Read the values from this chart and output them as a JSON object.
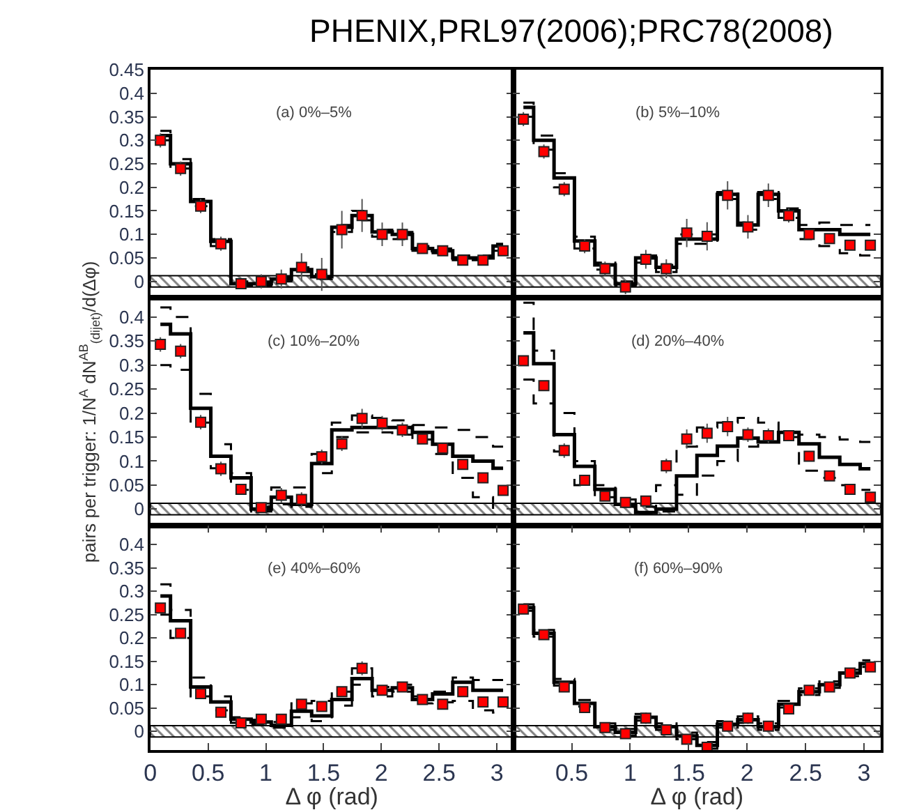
{
  "chart_data": [
    {
      "type": "step",
      "title": "PHENIX,PRL97(2006);PRC78(2008)",
      "annotations": [
        "(a) 0%–5%"
      ],
      "x": [
        0.087,
        0.262,
        0.436,
        0.611,
        0.785,
        0.96,
        1.134,
        1.309,
        1.484,
        1.658,
        1.833,
        2.007,
        2.182,
        2.356,
        2.531,
        2.705,
        2.88,
        3.054
      ],
      "xlim": [
        0,
        3.1416
      ],
      "ylim": [
        -0.035,
        0.45
      ],
      "yticks": [
        0,
        0.05,
        0.1,
        0.15,
        0.2,
        0.25,
        0.3,
        0.35,
        0.4,
        0.45
      ],
      "tick_labels": "y",
      "bands": [
        {
          "axis": "y",
          "from": -0.012,
          "to": 0.012,
          "color": "#000000"
        }
      ],
      "series": [
        {
          "color": "#000000",
          "line_style": "dashed",
          "values": [
            0.3,
            0.24,
            0.16,
            0.075,
            -0.01,
            -0.01,
            0.0,
            0.02,
            0.005,
            0.105,
            0.13,
            0.095,
            0.09,
            0.065,
            0.06,
            0.045,
            0.045,
            0.065
          ]
        },
        {
          "color": "#000000",
          "line_style": "dashed",
          "values": [
            0.32,
            0.26,
            0.175,
            0.09,
            0.0,
            0.0,
            0.01,
            0.03,
            0.015,
            0.12,
            0.15,
            0.11,
            0.105,
            0.075,
            0.07,
            0.055,
            0.055,
            0.08
          ]
        },
        {
          "color": "#000000",
          "values": [
            0.31,
            0.25,
            0.17,
            0.085,
            -0.005,
            -0.005,
            0.005,
            0.025,
            0.01,
            0.115,
            0.14,
            0.105,
            0.1,
            0.07,
            0.065,
            0.05,
            0.05,
            0.075
          ]
        },
        {
          "type": "scatter",
          "color": "#ff0000",
          "marker": "square",
          "values": [
            0.3,
            0.24,
            0.16,
            0.08,
            -0.005,
            0.0,
            0.005,
            0.03,
            0.015,
            0.11,
            0.14,
            0.1,
            0.1,
            0.07,
            0.065,
            0.045,
            0.045,
            0.065
          ],
          "errors": [
            0.015,
            0.015,
            0.015,
            0.015,
            0.01,
            0.015,
            0.02,
            0.03,
            0.035,
            0.04,
            0.035,
            0.025,
            0.025,
            0.01,
            0.01,
            0.01,
            0.01,
            0.01
          ]
        }
      ]
    },
    {
      "type": "step",
      "annotations": [
        "(b) 5%–10%"
      ],
      "x": [
        0.087,
        0.262,
        0.436,
        0.611,
        0.785,
        0.96,
        1.134,
        1.309,
        1.484,
        1.658,
        1.833,
        2.007,
        2.182,
        2.356,
        2.531,
        2.705,
        2.88,
        3.054
      ],
      "xlim": [
        0,
        3.1416
      ],
      "ylim": [
        -0.035,
        0.45
      ],
      "yticks": [
        0,
        0.05,
        0.1,
        0.15,
        0.2,
        0.25,
        0.3,
        0.35,
        0.4,
        0.45
      ],
      "tick_labels": false,
      "bands": [
        {
          "axis": "y",
          "from": -0.012,
          "to": 0.012,
          "color": "#000000"
        }
      ],
      "series": [
        {
          "color": "#000000",
          "line_style": "dashed",
          "values": [
            0.35,
            0.28,
            0.2,
            0.07,
            0.025,
            -0.01,
            0.04,
            0.02,
            0.08,
            0.08,
            0.175,
            0.11,
            0.175,
            0.135,
            0.09,
            0.075,
            0.06,
            0.055
          ]
        },
        {
          "color": "#000000",
          "line_style": "dashed",
          "values": [
            0.38,
            0.31,
            0.23,
            0.095,
            0.04,
            0.0,
            0.055,
            0.035,
            0.1,
            0.1,
            0.19,
            0.125,
            0.19,
            0.155,
            0.12,
            0.125,
            0.12,
            0.12
          ]
        },
        {
          "color": "#000000",
          "values": [
            0.37,
            0.3,
            0.22,
            0.086,
            0.035,
            -0.005,
            0.05,
            0.03,
            0.09,
            0.09,
            0.185,
            0.12,
            0.185,
            0.15,
            0.11,
            0.11,
            0.1,
            0.1
          ]
        },
        {
          "type": "scatter",
          "color": "#ff0000",
          "marker": "square",
          "values": [
            0.345,
            0.276,
            0.196,
            0.075,
            0.027,
            -0.012,
            0.047,
            0.027,
            0.103,
            0.096,
            0.183,
            0.116,
            0.183,
            0.14,
            0.1,
            0.091,
            0.077,
            0.077
          ],
          "errors": [
            0.015,
            0.015,
            0.015,
            0.015,
            0.015,
            0.015,
            0.02,
            0.02,
            0.03,
            0.03,
            0.03,
            0.025,
            0.025,
            0.015,
            0.01,
            0.01,
            0.01,
            0.01
          ]
        }
      ]
    },
    {
      "type": "step",
      "ylabel": "pairs per trigger: 1/N$^{A}$ dN$^{AB}$$_{(dijet)}$/d(Δφ)",
      "annotations": [
        "(c) 10%–20%"
      ],
      "x": [
        0.087,
        0.262,
        0.436,
        0.611,
        0.785,
        0.96,
        1.134,
        1.309,
        1.484,
        1.658,
        1.833,
        2.007,
        2.182,
        2.356,
        2.531,
        2.705,
        2.88,
        3.054
      ],
      "xlim": [
        0,
        3.1416
      ],
      "ylim": [
        -0.035,
        0.44
      ],
      "yticks": [
        0,
        0.05,
        0.1,
        0.15,
        0.2,
        0.25,
        0.3,
        0.35,
        0.4
      ],
      "tick_labels": "y",
      "bands": [
        {
          "axis": "y",
          "from": -0.012,
          "to": 0.012,
          "color": "#000000"
        }
      ],
      "series": [
        {
          "color": "#000000",
          "line_style": "dashed",
          "values": [
            0.3,
            0.29,
            0.18,
            0.085,
            0.04,
            -0.005,
            0.01,
            0.005,
            0.075,
            0.15,
            0.16,
            0.16,
            0.155,
            0.145,
            0.115,
            0.065,
            0.025,
            0.0
          ]
        },
        {
          "color": "#000000",
          "line_style": "dashed",
          "values": [
            0.42,
            0.4,
            0.24,
            0.135,
            0.075,
            0.005,
            0.045,
            0.045,
            0.115,
            0.18,
            0.195,
            0.19,
            0.185,
            0.175,
            0.17,
            0.165,
            0.15,
            0.13
          ]
        },
        {
          "color": "#000000",
          "values": [
            0.385,
            0.365,
            0.21,
            0.11,
            0.065,
            0.0,
            0.025,
            0.01,
            0.095,
            0.165,
            0.17,
            0.17,
            0.17,
            0.16,
            0.135,
            0.11,
            0.1,
            0.085
          ]
        },
        {
          "type": "scatter",
          "color": "#ff0000",
          "marker": "square",
          "values": [
            0.343,
            0.329,
            0.181,
            0.084,
            0.041,
            0.003,
            0.029,
            0.02,
            0.109,
            0.136,
            0.189,
            0.179,
            0.165,
            0.146,
            0.127,
            0.093,
            0.065,
            0.039
          ],
          "errors": [
            0.015,
            0.015,
            0.015,
            0.015,
            0.01,
            0.01,
            0.015,
            0.015,
            0.015,
            0.015,
            0.02,
            0.015,
            0.015,
            0.01,
            0.01,
            0.01,
            0.01,
            0.01
          ]
        }
      ]
    },
    {
      "type": "step",
      "annotations": [
        "(d) 20%–40%"
      ],
      "x": [
        0.087,
        0.262,
        0.436,
        0.611,
        0.785,
        0.96,
        1.134,
        1.309,
        1.484,
        1.658,
        1.833,
        2.007,
        2.182,
        2.356,
        2.531,
        2.705,
        2.88,
        3.054
      ],
      "xlim": [
        0,
        3.1416
      ],
      "ylim": [
        -0.035,
        0.44
      ],
      "yticks": [
        0,
        0.05,
        0.1,
        0.15,
        0.2,
        0.25,
        0.3,
        0.35,
        0.4
      ],
      "tick_labels": false,
      "bands": [
        {
          "axis": "y",
          "from": -0.012,
          "to": 0.012,
          "color": "#000000"
        }
      ],
      "series": [
        {
          "color": "#000000",
          "line_style": "dashed",
          "values": [
            0.27,
            0.22,
            0.12,
            0.05,
            0.025,
            0.005,
            -0.01,
            -0.005,
            0.03,
            0.07,
            0.1,
            0.13,
            0.14,
            0.15,
            0.08,
            0.065,
            0.05,
            0.04
          ]
        },
        {
          "color": "#000000",
          "line_style": "dashed",
          "values": [
            0.43,
            0.33,
            0.2,
            0.1,
            0.05,
            0.02,
            0.005,
            0.05,
            0.13,
            0.17,
            0.18,
            0.19,
            0.18,
            0.16,
            0.155,
            0.15,
            0.145,
            0.14
          ]
        },
        {
          "color": "#000000",
          "values": [
            0.367,
            0.303,
            0.155,
            0.089,
            0.041,
            0.01,
            -0.007,
            0.0,
            0.069,
            0.112,
            0.131,
            0.148,
            0.14,
            0.16,
            0.136,
            0.108,
            0.093,
            0.084
          ]
        },
        {
          "type": "scatter",
          "color": "#ff0000",
          "marker": "square",
          "values": [
            0.309,
            0.257,
            0.122,
            0.06,
            0.027,
            0.014,
            0.017,
            0.09,
            0.146,
            0.158,
            0.172,
            0.155,
            0.153,
            0.153,
            0.11,
            0.069,
            0.041,
            0.025
          ],
          "errors": [
            0.01,
            0.01,
            0.015,
            0.01,
            0.01,
            0.01,
            0.01,
            0.015,
            0.02,
            0.02,
            0.02,
            0.015,
            0.015,
            0.01,
            0.01,
            0.01,
            0.01,
            0.01
          ]
        }
      ]
    },
    {
      "type": "step",
      "xlabel": "Δ φ (rad)",
      "annotations": [
        "(e) 40%–60%"
      ],
      "x": [
        0.087,
        0.262,
        0.436,
        0.611,
        0.785,
        0.96,
        1.134,
        1.309,
        1.484,
        1.658,
        1.833,
        2.007,
        2.182,
        2.356,
        2.531,
        2.705,
        2.88,
        3.054
      ],
      "xlim": [
        0,
        3.1416
      ],
      "ylim": [
        -0.04,
        0.44
      ],
      "xticks": [
        0,
        0.5,
        1,
        1.5,
        2,
        2.5,
        3
      ],
      "yticks": [
        0,
        0.05,
        0.1,
        0.15,
        0.2,
        0.25,
        0.3,
        0.35,
        0.4
      ],
      "bands": [
        {
          "axis": "y",
          "from": -0.012,
          "to": 0.012,
          "color": "#000000"
        }
      ],
      "series": [
        {
          "color": "#000000",
          "line_style": "dashed",
          "values": [
            0.25,
            0.2,
            0.075,
            0.045,
            0.018,
            0.015,
            0.008,
            0.03,
            0.022,
            0.055,
            0.1,
            0.075,
            0.085,
            0.06,
            0.062,
            0.065,
            0.045,
            0.04
          ]
        },
        {
          "color": "#000000",
          "line_style": "dashed",
          "values": [
            0.315,
            0.26,
            0.115,
            0.075,
            0.03,
            0.025,
            0.02,
            0.06,
            0.065,
            0.085,
            0.135,
            0.095,
            0.1,
            0.075,
            0.085,
            0.115,
            0.11,
            0.11
          ]
        },
        {
          "color": "#000000",
          "values": [
            0.29,
            0.237,
            0.095,
            0.063,
            0.026,
            0.02,
            0.013,
            0.043,
            0.033,
            0.068,
            0.113,
            0.088,
            0.093,
            0.068,
            0.08,
            0.105,
            0.088,
            0.088
          ]
        },
        {
          "type": "scatter",
          "color": "#ff0000",
          "marker": "square",
          "values": [
            0.264,
            0.21,
            0.081,
            0.041,
            0.018,
            0.026,
            0.026,
            0.058,
            0.053,
            0.085,
            0.135,
            0.088,
            0.095,
            0.068,
            0.058,
            0.085,
            0.063,
            0.063
          ],
          "errors": [
            0.01,
            0.01,
            0.01,
            0.01,
            0.01,
            0.01,
            0.01,
            0.01,
            0.01,
            0.01,
            0.015,
            0.01,
            0.01,
            0.01,
            0.01,
            0.01,
            0.01,
            0.01
          ]
        }
      ]
    },
    {
      "type": "step",
      "xlabel": "Δ φ (rad)",
      "annotations": [
        "(f) 60%–90%"
      ],
      "x": [
        0.087,
        0.262,
        0.436,
        0.611,
        0.785,
        0.96,
        1.134,
        1.309,
        1.484,
        1.658,
        1.833,
        2.007,
        2.182,
        2.356,
        2.531,
        2.705,
        2.88,
        3.054
      ],
      "xlim": [
        0,
        3.1416
      ],
      "ylim": [
        -0.04,
        0.44
      ],
      "xticks": [
        0.5,
        1,
        1.5,
        2,
        2.5,
        3
      ],
      "yticks": [
        0,
        0.05,
        0.1,
        0.15,
        0.2,
        0.25,
        0.3,
        0.35,
        0.4
      ],
      "tick_labels": "x",
      "bands": [
        {
          "axis": "y",
          "from": -0.012,
          "to": 0.012,
          "color": "#000000"
        }
      ],
      "series": [
        {
          "color": "#000000",
          "line_style": "dashed",
          "values": [
            0.258,
            0.203,
            0.098,
            0.053,
            0.003,
            -0.009,
            0.023,
            0.003,
            -0.017,
            -0.037,
            0.008,
            0.018,
            0.003,
            0.051,
            0.078,
            0.093,
            0.118,
            0.138
          ]
        },
        {
          "color": "#000000",
          "line_style": "dashed",
          "values": [
            0.272,
            0.217,
            0.112,
            0.067,
            0.017,
            0.005,
            0.037,
            0.017,
            -0.003,
            -0.023,
            0.022,
            0.032,
            0.017,
            0.065,
            0.092,
            0.107,
            0.132,
            0.152
          ]
        },
        {
          "color": "#000000",
          "values": [
            0.265,
            0.21,
            0.105,
            0.06,
            0.01,
            -0.002,
            0.03,
            0.01,
            -0.01,
            -0.03,
            0.015,
            0.025,
            0.01,
            0.058,
            0.085,
            0.1,
            0.125,
            0.145
          ]
        },
        {
          "type": "scatter",
          "color": "#ff0000",
          "marker": "square",
          "values": [
            0.262,
            0.207,
            0.095,
            0.051,
            0.008,
            -0.005,
            0.028,
            0.003,
            -0.017,
            -0.034,
            0.011,
            0.028,
            0.011,
            0.048,
            0.088,
            0.095,
            0.125,
            0.138
          ],
          "errors": [
            0.008,
            null,
            null,
            0.008,
            0.008,
            null,
            0.012,
            0.01,
            0.01,
            0.01,
            0.01,
            0.012,
            0.01,
            0.008,
            0.008,
            null,
            null,
            0.008
          ]
        }
      ]
    }
  ]
}
